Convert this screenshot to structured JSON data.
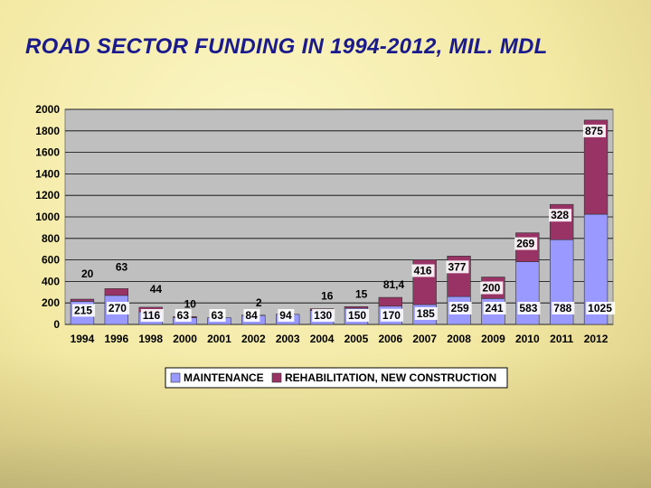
{
  "title": "ROAD SECTOR FUNDING IN 1994-2012, MIL. MDL",
  "chart_data": {
    "type": "bar",
    "stacked": true,
    "title": "ROAD SECTOR FUNDING IN 1994-2012, MIL. MDL",
    "xlabel": "",
    "ylabel": "",
    "ylim": [
      0,
      2000
    ],
    "yticks": [
      0,
      200,
      400,
      600,
      800,
      1000,
      1200,
      1400,
      1600,
      1800,
      2000
    ],
    "grid": true,
    "legend_position": "bottom",
    "categories": [
      "1994",
      "1996",
      "1998",
      "2000",
      "2001",
      "2002",
      "2003",
      "2004",
      "2005",
      "2006",
      "2007",
      "2008",
      "2009",
      "2010",
      "2011",
      "2012"
    ],
    "series": [
      {
        "name": "MAINTENANCE",
        "color": "#9999ff",
        "values": [
          215,
          270,
          116,
          63,
          63,
          84,
          94,
          130,
          150,
          170,
          185,
          259,
          241,
          583,
          788,
          1025
        ],
        "labels": [
          "215",
          "270",
          "116",
          "63",
          "63",
          "84",
          "94",
          "130",
          "150",
          "170",
          "185",
          "259",
          "241",
          "583",
          "788",
          "1025"
        ]
      },
      {
        "name": "REHABILITATION, NEW CONSTRUCTION",
        "color": "#993366",
        "values": [
          20,
          63,
          44,
          10,
          0,
          2,
          0,
          16,
          15,
          81.4,
          416,
          377,
          200,
          269,
          328,
          875
        ],
        "labels": [
          "20",
          "63",
          "44",
          "10",
          "",
          "2",
          "",
          "16",
          "15",
          "81,4",
          "416",
          "377",
          "200",
          "269",
          "328",
          "875"
        ]
      }
    ]
  }
}
